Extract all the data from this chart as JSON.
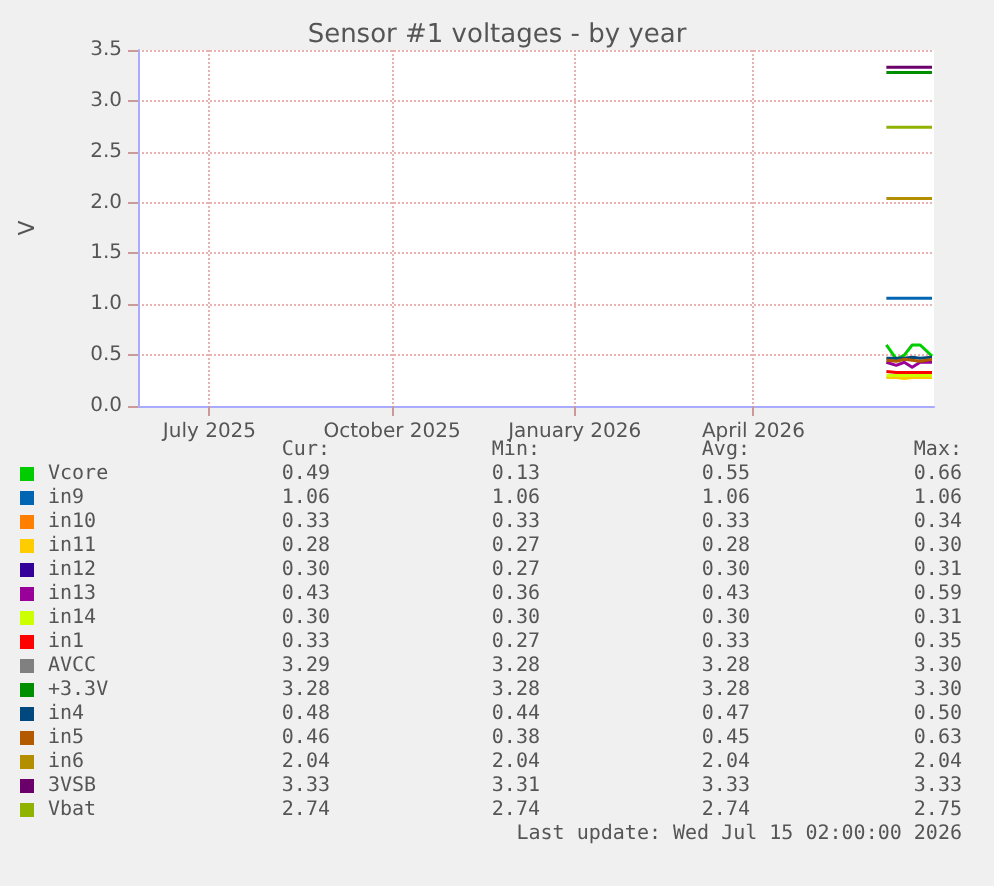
{
  "chart_data": {
    "type": "line",
    "title": "Sensor #1 voltages - by year",
    "ylabel": "V",
    "x": [
      "2026-06-22",
      "2026-06-27",
      "2026-07-01",
      "2026-07-05",
      "2026-07-09",
      "2026-07-15"
    ],
    "series": [
      {
        "name": "Vcore",
        "color": "#00cc00",
        "values": [
          0.6,
          0.46,
          0.5,
          0.6,
          0.6,
          0.49
        ]
      },
      {
        "name": "in9",
        "color": "#0066b3",
        "values": [
          1.06,
          1.06,
          1.06,
          1.06,
          1.06,
          1.06
        ]
      },
      {
        "name": "in10",
        "color": "#ff8000",
        "values": [
          null,
          null,
          null,
          null,
          null,
          null
        ]
      },
      {
        "name": "in11",
        "color": "#ffcc00",
        "values": [
          0.28,
          0.28,
          0.27,
          0.28,
          0.28,
          0.28
        ]
      },
      {
        "name": "in12",
        "color": "#330099",
        "values": [
          null,
          null,
          null,
          null,
          null,
          null
        ]
      },
      {
        "name": "in13",
        "color": "#990099",
        "values": [
          0.43,
          0.4,
          0.43,
          0.38,
          0.43,
          0.43
        ]
      },
      {
        "name": "in14",
        "color": "#ccff00",
        "values": [
          0.3,
          0.3,
          0.3,
          0.3,
          0.3,
          0.3
        ]
      },
      {
        "name": "in1",
        "color": "#ff0000",
        "values": [
          0.34,
          0.33,
          0.33,
          0.33,
          0.33,
          0.33
        ]
      },
      {
        "name": "AVCC",
        "color": "#808080",
        "values": [
          null,
          null,
          null,
          null,
          null,
          null
        ]
      },
      {
        "name": "+3.3V",
        "color": "#008f00",
        "values": [
          3.28,
          3.28,
          3.28,
          3.28,
          3.28,
          3.28
        ]
      },
      {
        "name": "in4",
        "color": "#00487d",
        "values": [
          0.47,
          0.47,
          0.47,
          0.48,
          0.47,
          0.48
        ]
      },
      {
        "name": "in5",
        "color": "#b35a00",
        "values": [
          0.45,
          0.44,
          0.46,
          0.45,
          0.44,
          0.46
        ]
      },
      {
        "name": "in6",
        "color": "#b38f00",
        "values": [
          2.04,
          2.04,
          2.04,
          2.04,
          2.04,
          2.04
        ]
      },
      {
        "name": "3VSB",
        "color": "#6b006b",
        "values": [
          3.33,
          3.33,
          3.33,
          3.33,
          3.33,
          3.33
        ]
      },
      {
        "name": "Vbat",
        "color": "#8fb300",
        "values": [
          2.74,
          2.74,
          2.74,
          2.74,
          2.74,
          2.74
        ]
      }
    ],
    "xlim": [
      "2025-06-10",
      "2026-07-16"
    ],
    "xticks": [
      {
        "value": "2025-07-16",
        "label": "July 2025"
      },
      {
        "value": "2025-10-16",
        "label": "October 2025"
      },
      {
        "value": "2026-01-16",
        "label": "January 2026"
      },
      {
        "value": "2026-04-16",
        "label": "April 2026"
      }
    ],
    "ylim": [
      0,
      3.5
    ],
    "yticks": [
      {
        "value": 0,
        "label": "0.0"
      },
      0.5,
      {
        "value": 1,
        "label": "1.0"
      },
      1.5,
      {
        "value": 2,
        "label": "2.0"
      },
      2.5,
      {
        "value": 3,
        "label": "3.0"
      },
      3.5
    ],
    "grid": true,
    "legend": "bottom",
    "marker": "none",
    "line_style": "solid",
    "annotations": [
      "Cur:",
      "Min:",
      "Avg:",
      "Max:",
      "0.49",
      "0.13",
      "0.55",
      "0.66",
      "1.06",
      "1.06",
      "1.06",
      "1.06",
      "0.33",
      "0.33",
      "0.33",
      "0.34",
      "0.28",
      "0.27",
      "0.28",
      "0.30",
      "0.30",
      "0.27",
      "0.30",
      "0.31",
      "0.43",
      "0.36",
      "0.43",
      "0.59",
      "0.30",
      "0.30",
      "0.30",
      "0.31",
      "0.33",
      "0.27",
      "0.33",
      "0.35",
      "3.29",
      "3.28",
      "3.28",
      "3.30",
      "3.28",
      "3.28",
      "3.28",
      "3.30",
      "0.48",
      "0.44",
      "0.47",
      "0.50",
      "0.46",
      "0.38",
      "0.45",
      "0.63",
      "2.04",
      "2.04",
      "2.04",
      "2.04",
      "3.33",
      "3.31",
      "3.33",
      "3.33",
      "2.74",
      "2.74",
      "2.74",
      "2.75",
      "Last update: Wed Jul 15 02:00:00 2026"
    ]
  }
}
